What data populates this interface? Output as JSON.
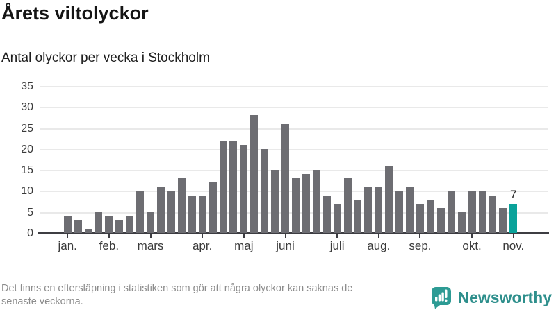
{
  "page": {
    "title": "Årets viltolyckor",
    "subtitle": "Antal olyckor per vecka i Stockholm",
    "footer_line1": "Det finns en eftersläpning i statistiken som gör att några olyckor kan saknas de",
    "footer_line2": "senaste veckorna.",
    "brand": "Newsworthy"
  },
  "colors": {
    "bar": "#6d6d72",
    "highlight": "#0aa29a",
    "grid": "#e9e9e9",
    "axis": "#3d3d42",
    "logo_icon": "#2d9b94",
    "logo_text": "#2e8f8c"
  },
  "chart_data": {
    "type": "bar",
    "title": "Årets viltolyckor",
    "subtitle": "Antal olyckor per vecka i Stockholm",
    "x_unit": "vecka (week of year)",
    "values": [
      4,
      3,
      1,
      5,
      4,
      3,
      4,
      10,
      5,
      11,
      10,
      13,
      9,
      9,
      12,
      22,
      22,
      21,
      28,
      20,
      15,
      26,
      13,
      14,
      15,
      9,
      7,
      13,
      8,
      11,
      11,
      16,
      10,
      11,
      7,
      8,
      6,
      10,
      5,
      10,
      10,
      9,
      6,
      7
    ],
    "highlight_index": 43,
    "highlight_label": "7",
    "ylim": [
      0,
      35
    ],
    "yticks": [
      0,
      5,
      10,
      15,
      20,
      25,
      30,
      35
    ],
    "grid": true,
    "legend": "none",
    "month_ticks": [
      {
        "i": 0,
        "label": "jan."
      },
      {
        "i": 4,
        "label": "feb."
      },
      {
        "i": 8,
        "label": "mars"
      },
      {
        "i": 13,
        "label": "apr."
      },
      {
        "i": 17,
        "label": "maj"
      },
      {
        "i": 21,
        "label": "juni"
      },
      {
        "i": 26,
        "label": "juli"
      },
      {
        "i": 30,
        "label": "aug."
      },
      {
        "i": 34,
        "label": "sep."
      },
      {
        "i": 39,
        "label": "okt."
      },
      {
        "i": 43,
        "label": "nov."
      }
    ]
  }
}
